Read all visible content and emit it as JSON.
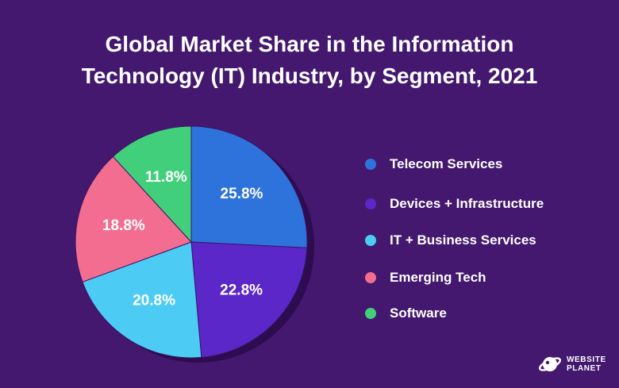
{
  "chart_data": {
    "type": "pie",
    "title_lines": [
      "Global Market Share in the Information",
      "Technology (IT) Industry, by Segment, 2021"
    ],
    "slices": [
      {
        "label": "Telecom Services",
        "value": 25.8,
        "display": "25.8%",
        "color": "#2e73dc"
      },
      {
        "label": "Devices + Infrastructure",
        "value": 22.8,
        "display": "22.8%",
        "color": "#5b27c8"
      },
      {
        "label": "IT + Business Services",
        "value": 20.8,
        "display": "20.8%",
        "color": "#4ccbf5"
      },
      {
        "label": "Emerging Tech",
        "value": 18.8,
        "display": "18.8%",
        "color": "#f26d8f"
      },
      {
        "label": "Software",
        "value": 11.8,
        "display": "11.8%",
        "color": "#42cf7c"
      }
    ],
    "legend_position": "right"
  },
  "brand": {
    "line1": "WEBSITE",
    "line2": "PLANET",
    "icon": "planet-icon"
  },
  "colors": {
    "background": "#43186e",
    "shadow": "#2d0c50",
    "text": "#ffffff"
  }
}
